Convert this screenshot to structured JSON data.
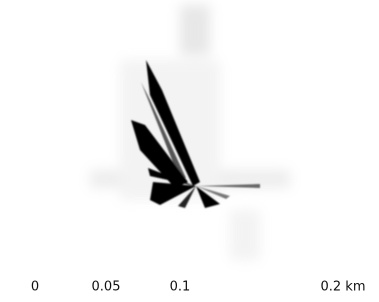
{
  "scale_bar": {
    "labels": [
      "0",
      "0.05",
      "0.1",
      "0.2 km"
    ]
  }
}
